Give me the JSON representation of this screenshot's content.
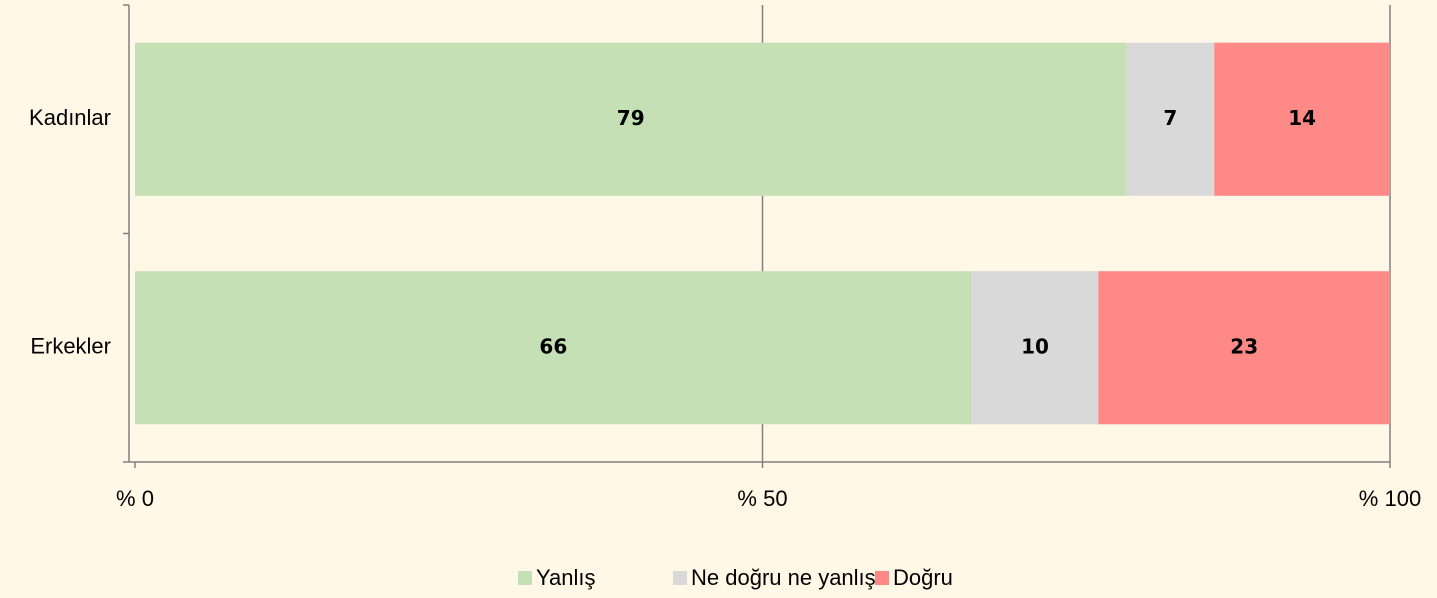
{
  "chart_data": {
    "type": "bar",
    "orientation": "horizontal",
    "stack": "percent",
    "categories": [
      "Kadınlar",
      "Erkekler"
    ],
    "series": [
      {
        "name": "Yanlış",
        "color": "#c5e0b4",
        "values": [
          79,
          66
        ]
      },
      {
        "name": "Ne doğru ne yanlış",
        "color": "#d9d9d9",
        "values": [
          7,
          10
        ]
      },
      {
        "name": "Doğru",
        "color": "#ff8986",
        "values": [
          14,
          23
        ]
      }
    ],
    "xlim": [
      0,
      100
    ],
    "xticks": [
      {
        "value": 0,
        "label": "% 0"
      },
      {
        "value": 50,
        "label": "% 50"
      },
      {
        "value": 100,
        "label": "% 100"
      }
    ],
    "grid": true,
    "legend": "bottom"
  }
}
